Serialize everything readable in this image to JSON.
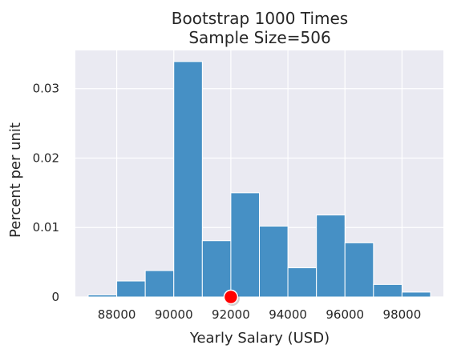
{
  "chart_data": {
    "type": "bar",
    "title_lines": [
      "Bootstrap 1000 Times",
      "Sample Size=506"
    ],
    "xlabel": "Yearly Salary (USD)",
    "ylabel": "Percent per unit",
    "xlim": [
      86550,
      99450
    ],
    "ylim": [
      0,
      0.0355
    ],
    "xticks": [
      88000,
      90000,
      92000,
      94000,
      96000,
      98000
    ],
    "xtick_labels": [
      "88000",
      "90000",
      "92000",
      "94000",
      "96000",
      "98000"
    ],
    "yticks": [
      0,
      0.01,
      0.02,
      0.03
    ],
    "ytick_labels": [
      "0",
      "0.01",
      "0.02",
      "0.03"
    ],
    "grid": true,
    "bin_edges": [
      87000,
      88000,
      89000,
      90000,
      91000,
      92000,
      93000,
      94000,
      95000,
      96000,
      97000,
      98000,
      99000
    ],
    "values": [
      0.0003,
      0.0023,
      0.0038,
      0.0339,
      0.0081,
      0.015,
      0.0102,
      0.0042,
      0.0118,
      0.0078,
      0.0018,
      0.0007
    ],
    "marker": {
      "x": 92000,
      "y": 0
    },
    "colors": {
      "bar": "#4690c5",
      "background": "#eaeaf2",
      "grid": "#ffffff",
      "marker": "#ff0000"
    }
  }
}
